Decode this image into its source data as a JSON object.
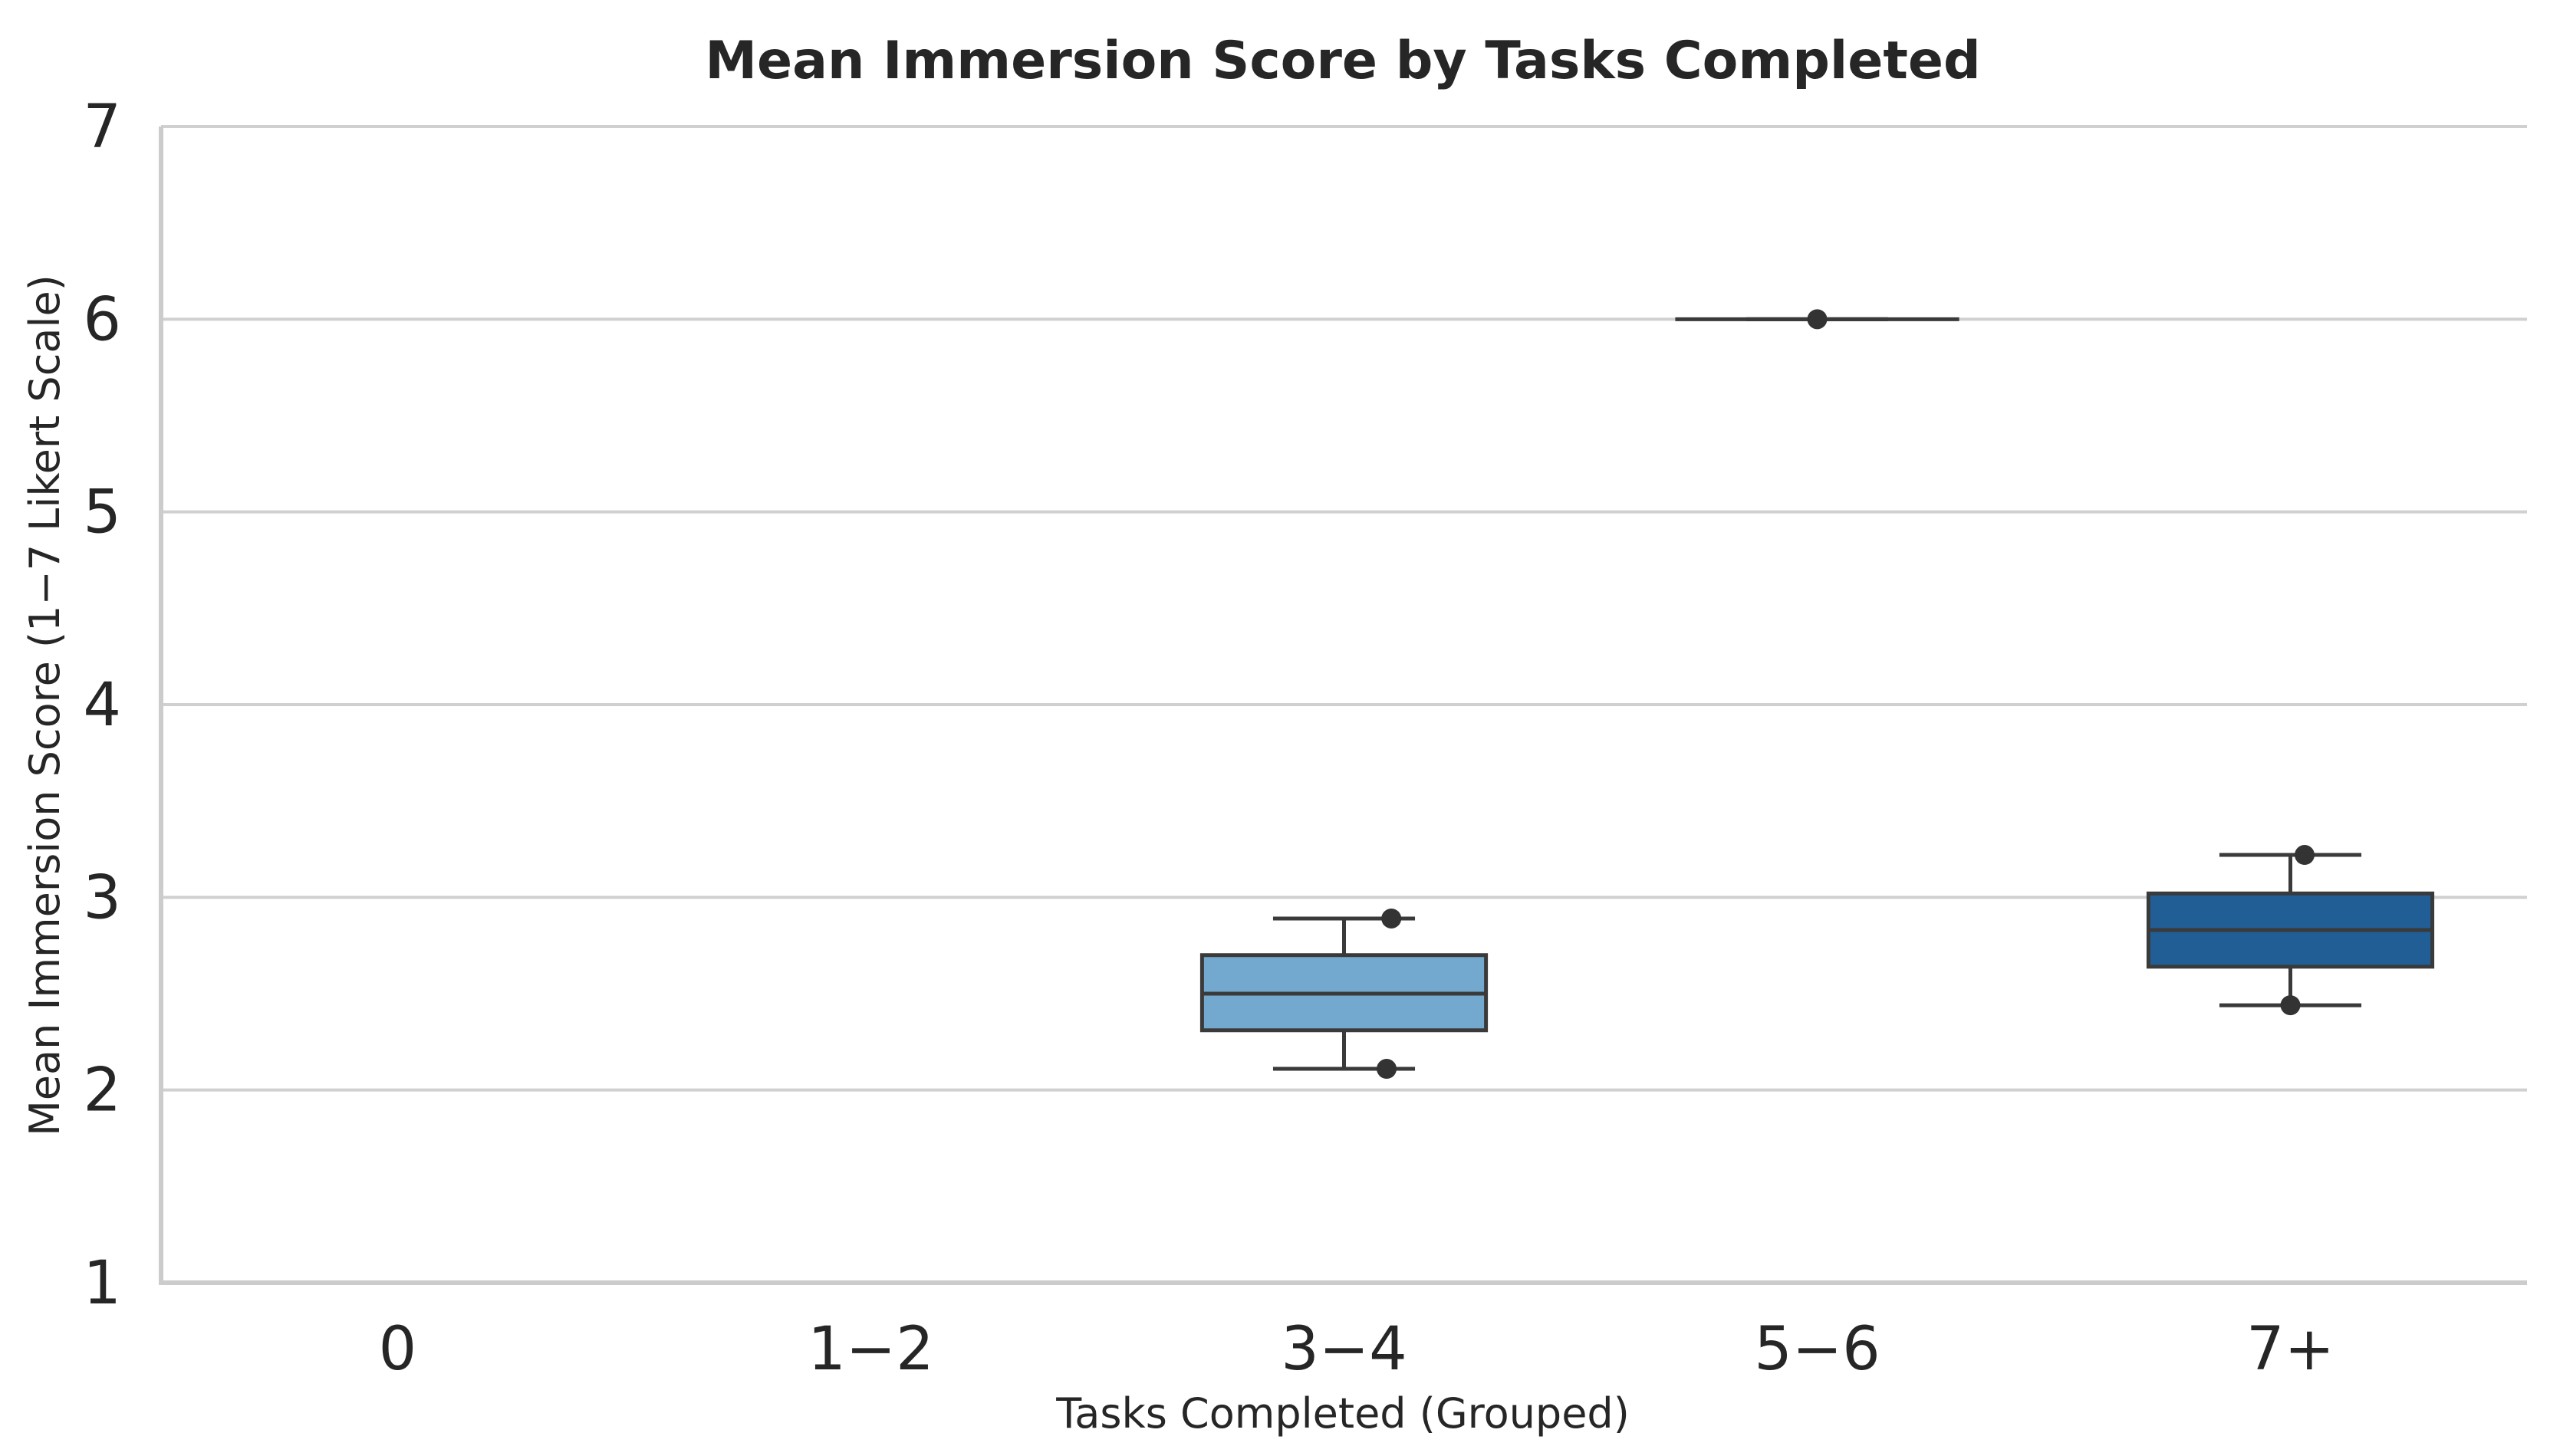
{
  "chart_data": {
    "type": "box",
    "title": "Mean Immersion Score by Tasks Completed",
    "xlabel": "Tasks Completed (Grouped)",
    "ylabel": "Mean Immersion Score (1−7 Likert Scale)",
    "ylim": [
      1,
      7
    ],
    "yticks": [
      "1",
      "2",
      "3",
      "4",
      "5",
      "6",
      "7"
    ],
    "grid": "horizontal",
    "categories": [
      "0",
      "1−2",
      "3−4",
      "5−6",
      "7+"
    ],
    "boxes": [
      {
        "category": "0",
        "present": false
      },
      {
        "category": "1−2",
        "present": false
      },
      {
        "category": "3−4",
        "present": true,
        "whisker_low": 2.11,
        "q1": 2.31,
        "median": 2.5,
        "q3": 2.7,
        "whisker_high": 2.89,
        "color": "#74a9cf"
      },
      {
        "category": "5−6",
        "present": true,
        "whisker_low": 6.0,
        "q1": 6.0,
        "median": 6.0,
        "q3": 6.0,
        "whisker_high": 6.0,
        "color": "#3182bd"
      },
      {
        "category": "7+",
        "present": true,
        "whisker_low": 2.44,
        "q1": 2.64,
        "median": 2.83,
        "q3": 3.02,
        "whisker_high": 3.22,
        "color": "#215e96"
      }
    ],
    "points": [
      {
        "category": "3−4",
        "y": 2.89
      },
      {
        "category": "3−4",
        "y": 2.11
      },
      {
        "category": "5−6",
        "y": 6.0
      },
      {
        "category": "7+",
        "y": 3.22
      },
      {
        "category": "7+",
        "y": 2.44
      }
    ]
  }
}
